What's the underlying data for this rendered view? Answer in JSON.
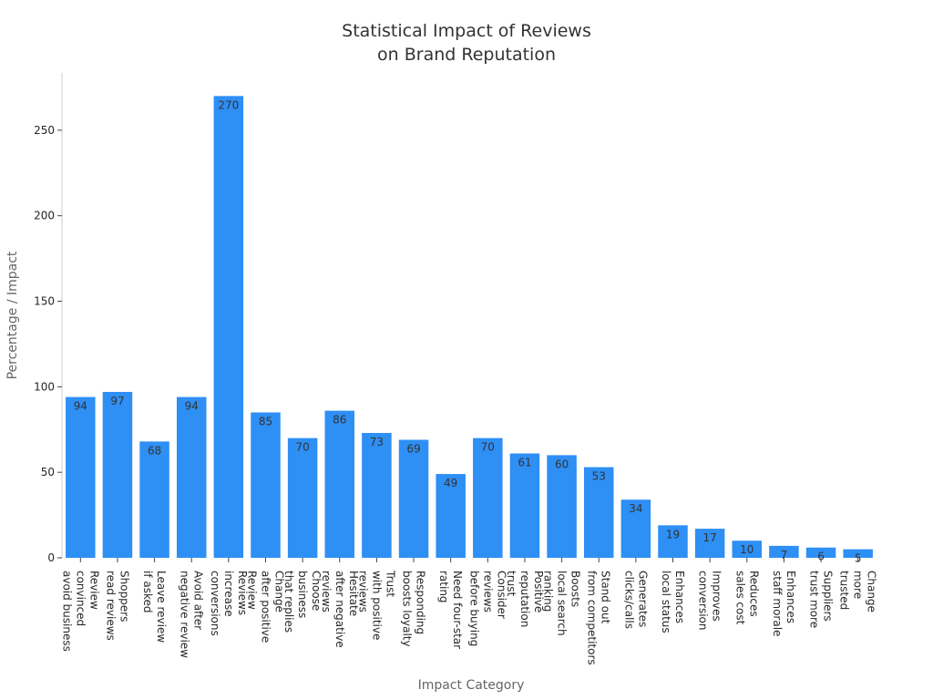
{
  "chart_data": {
    "type": "bar",
    "title": [
      "Statistical Impact of Reviews",
      "on Brand Reputation"
    ],
    "x_label": "Impact Category",
    "y_label": "Percentage / Impact",
    "categories": [
      [
        "Review",
        "convinced",
        "avoid business"
      ],
      [
        "Shoppers",
        "read reviews"
      ],
      [
        "Leave review",
        "if asked"
      ],
      [
        "Avoid after",
        "negative review"
      ],
      [
        "Reviews",
        "increase",
        "conversions"
      ],
      [
        "Change",
        "after positive",
        "Review"
      ],
      [
        "Choose",
        "business",
        "that replies"
      ],
      [
        "Hesitate",
        "after negative",
        "reviews"
      ],
      [
        "Trust",
        "with positive",
        "reviews"
      ],
      [
        "Responding",
        "boosts loyalty"
      ],
      [
        "Need four-star",
        "rating"
      ],
      [
        "Consider",
        "reviews",
        "before buying"
      ],
      [
        "Positive",
        "reputation",
        "trust"
      ],
      [
        "Boosts",
        "local search",
        "ranking"
      ],
      [
        "Stand out",
        "from competitors"
      ],
      [
        "Generates",
        "clicks/calls"
      ],
      [
        "Enhances",
        "local status"
      ],
      [
        "Improves",
        "conversion"
      ],
      [
        "Reduces",
        "sales cost"
      ],
      [
        "Enhances",
        "staff morale"
      ],
      [
        "Suppliers",
        "trust more"
      ],
      [
        "Change",
        "more",
        "trusted"
      ]
    ],
    "values": [
      94,
      97,
      68,
      94,
      270,
      85,
      70,
      86,
      73,
      69,
      49,
      70,
      61,
      60,
      53,
      34,
      19,
      17,
      10,
      7,
      6,
      5
    ],
    "color": "#2e8ff5",
    "ylim": [
      0,
      283.5
    ],
    "yticks": [
      0,
      50,
      100,
      150,
      200,
      250
    ]
  }
}
